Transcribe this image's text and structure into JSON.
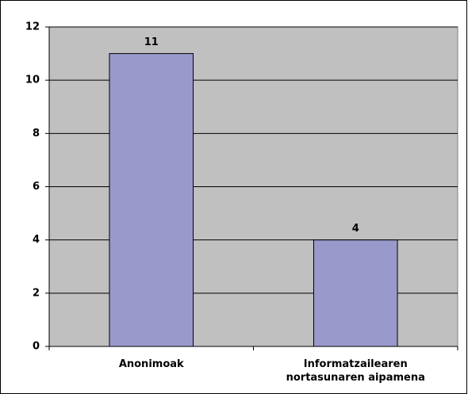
{
  "chart_data": {
    "type": "bar",
    "categories": [
      "Anonimoak",
      "Informatzailearen nortasunaren aipamena"
    ],
    "values": [
      11,
      4
    ],
    "color": "#9999cc",
    "ylim": [
      0,
      12
    ],
    "yticks": [
      0,
      2,
      4,
      6,
      8,
      10,
      12
    ],
    "grid": true
  }
}
